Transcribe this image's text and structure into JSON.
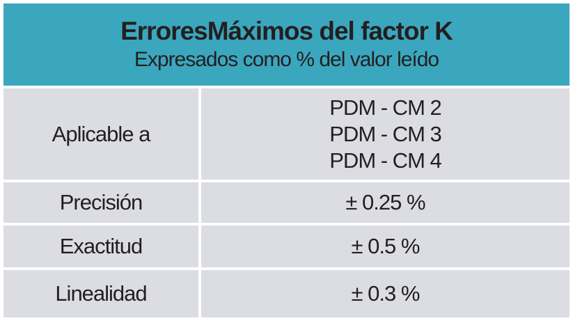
{
  "header": {
    "title": "ErroresMáximos del factor K",
    "subtitle": "Expresados como % del valor leído"
  },
  "table": {
    "rows": [
      [
        "Aplicable a",
        [
          "PDM - CM 2",
          "PDM - CM 3",
          "PDM - CM 4"
        ]
      ],
      [
        "Precisión",
        "± 0.25 %"
      ],
      [
        "Exactitud",
        "± 0.5 %"
      ],
      [
        "Linealidad",
        "± 0.3 %"
      ]
    ]
  }
}
